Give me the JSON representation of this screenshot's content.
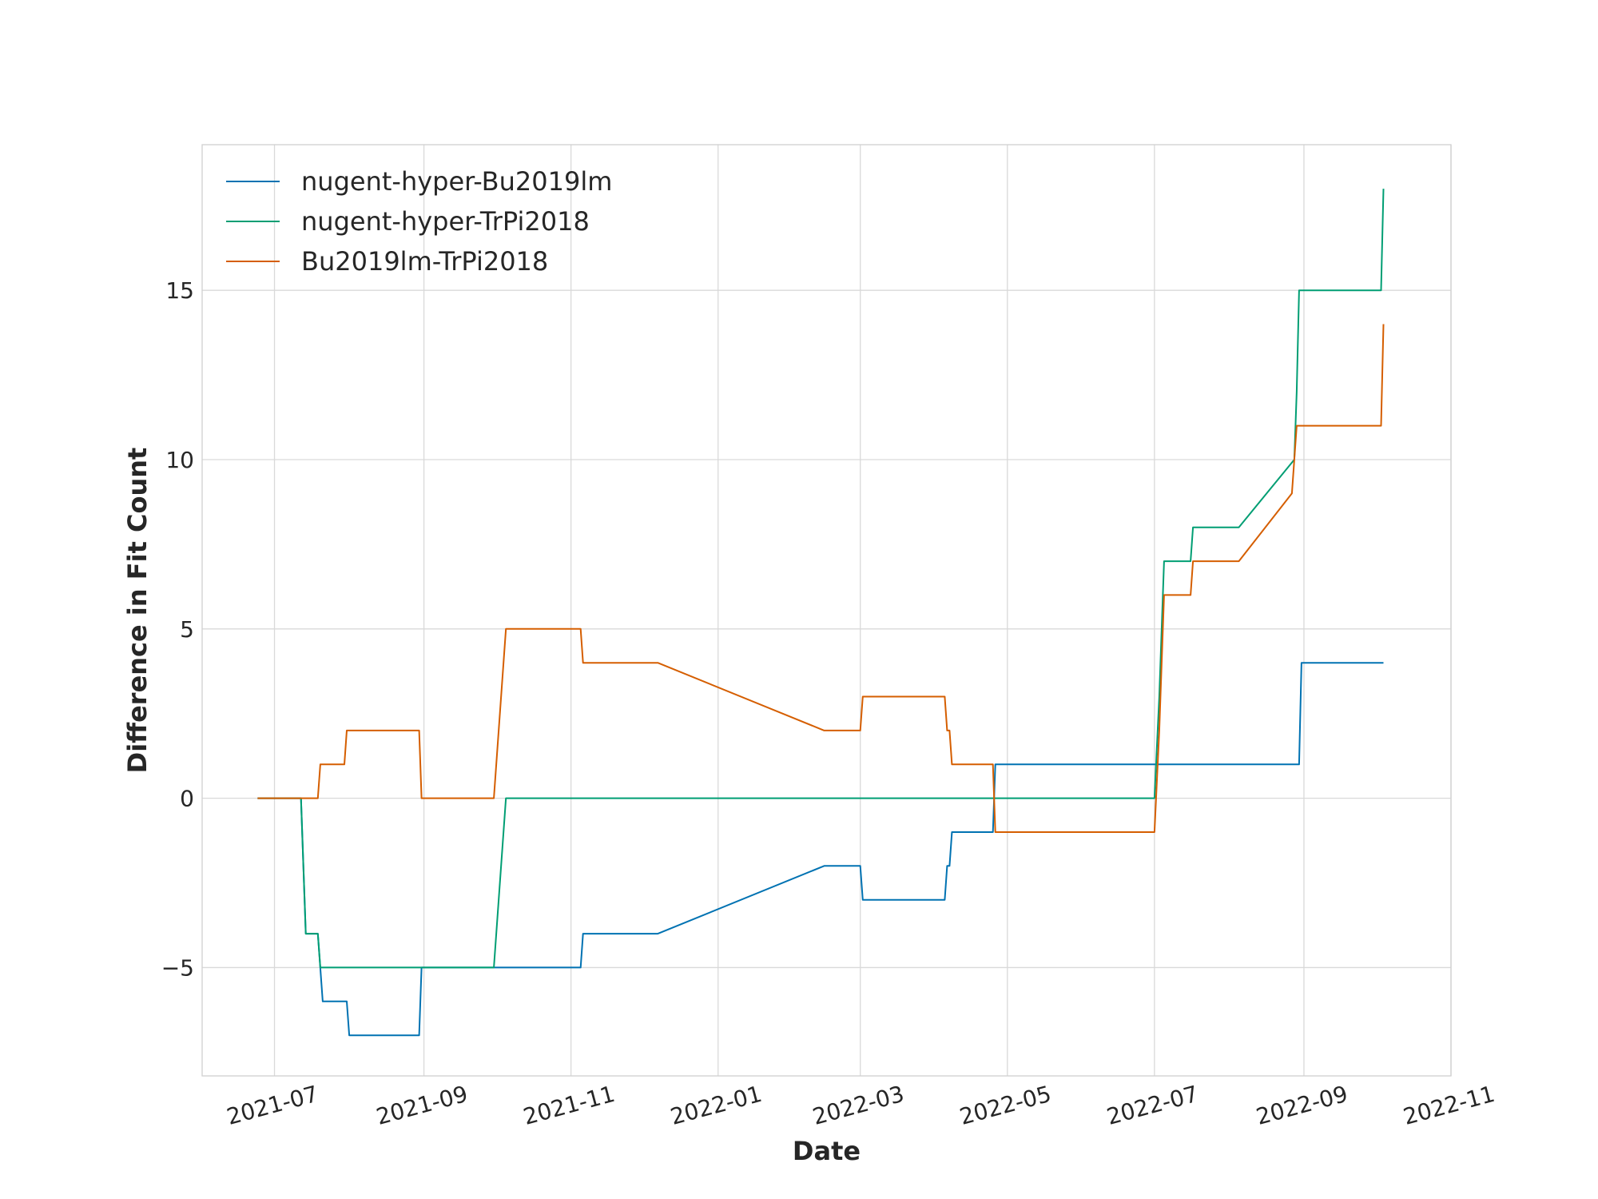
{
  "chart_data": {
    "type": "line",
    "title": "",
    "xlabel": "Date",
    "ylabel": "Difference in Fit Count",
    "x_axis_type": "date",
    "xlim": [
      "2021-06-01",
      "2022-11-01"
    ],
    "ylim": [
      -8.2,
      19.3
    ],
    "x_ticks": [
      "2021-07-01",
      "2021-09-01",
      "2021-11-01",
      "2022-01-01",
      "2022-03-01",
      "2022-05-01",
      "2022-07-01",
      "2022-09-01",
      "2022-11-01"
    ],
    "x_tick_labels": [
      "2021-07",
      "2021-09",
      "2021-11",
      "2022-01",
      "2022-03",
      "2022-05",
      "2022-07",
      "2022-09",
      "2022-11"
    ],
    "y_ticks": [
      -5,
      0,
      5,
      10,
      15
    ],
    "y_tick_labels": [
      "−5",
      "0",
      "5",
      "10",
      "15"
    ],
    "grid": true,
    "legend_position": "top-left",
    "series": [
      {
        "name": "nugent-hyper-Bu2019lm",
        "color": "#0072B2",
        "points": [
          [
            "2021-06-24",
            0
          ],
          [
            "2021-07-12",
            0
          ],
          [
            "2021-07-14",
            -4
          ],
          [
            "2021-07-19",
            -4
          ],
          [
            "2021-07-21",
            -6
          ],
          [
            "2021-07-31",
            -6
          ],
          [
            "2021-08-01",
            -7
          ],
          [
            "2021-08-30",
            -7
          ],
          [
            "2021-08-31",
            -5
          ],
          [
            "2021-11-05",
            -5
          ],
          [
            "2021-11-06",
            -4
          ],
          [
            "2021-12-07",
            -4
          ],
          [
            "2022-02-14",
            -2
          ],
          [
            "2022-03-01",
            -2
          ],
          [
            "2022-03-02",
            -3
          ],
          [
            "2022-04-05",
            -3
          ],
          [
            "2022-04-06",
            -2
          ],
          [
            "2022-04-07",
            -2
          ],
          [
            "2022-04-08",
            -1
          ],
          [
            "2022-04-25",
            -1
          ],
          [
            "2022-04-26",
            1
          ],
          [
            "2022-08-30",
            1
          ],
          [
            "2022-08-31",
            4
          ],
          [
            "2022-10-04",
            4
          ]
        ]
      },
      {
        "name": "nugent-hyper-TrPi2018",
        "color": "#009E73",
        "points": [
          [
            "2021-06-24",
            0
          ],
          [
            "2021-07-12",
            0
          ],
          [
            "2021-07-14",
            -4
          ],
          [
            "2021-07-19",
            -4
          ],
          [
            "2021-07-20",
            -5
          ],
          [
            "2021-09-30",
            -5
          ],
          [
            "2021-10-05",
            0
          ],
          [
            "2022-07-01",
            0
          ],
          [
            "2022-07-03",
            3
          ],
          [
            "2022-07-05",
            7
          ],
          [
            "2022-07-16",
            7
          ],
          [
            "2022-07-17",
            8
          ],
          [
            "2022-08-05",
            8
          ],
          [
            "2022-08-28",
            10
          ],
          [
            "2022-08-29",
            12
          ],
          [
            "2022-08-30",
            15
          ],
          [
            "2022-10-03",
            15
          ],
          [
            "2022-10-04",
            18
          ]
        ]
      },
      {
        "name": "Bu2019lm-TrPi2018",
        "color": "#D55E00",
        "points": [
          [
            "2021-06-24",
            0
          ],
          [
            "2021-07-19",
            0
          ],
          [
            "2021-07-20",
            1
          ],
          [
            "2021-07-30",
            1
          ],
          [
            "2021-07-31",
            2
          ],
          [
            "2021-08-30",
            2
          ],
          [
            "2021-08-31",
            0
          ],
          [
            "2021-09-30",
            0
          ],
          [
            "2021-10-05",
            5
          ],
          [
            "2021-11-05",
            5
          ],
          [
            "2021-11-06",
            4
          ],
          [
            "2021-12-07",
            4
          ],
          [
            "2022-02-14",
            2
          ],
          [
            "2022-03-01",
            2
          ],
          [
            "2022-03-02",
            3
          ],
          [
            "2022-04-05",
            3
          ],
          [
            "2022-04-06",
            2
          ],
          [
            "2022-04-07",
            2
          ],
          [
            "2022-04-08",
            1
          ],
          [
            "2022-04-25",
            1
          ],
          [
            "2022-04-26",
            -1
          ],
          [
            "2022-07-01",
            -1
          ],
          [
            "2022-07-03",
            2
          ],
          [
            "2022-07-05",
            6
          ],
          [
            "2022-07-16",
            6
          ],
          [
            "2022-07-17",
            7
          ],
          [
            "2022-08-05",
            7
          ],
          [
            "2022-08-27",
            9
          ],
          [
            "2022-08-29",
            11
          ],
          [
            "2022-10-03",
            11
          ],
          [
            "2022-10-04",
            14
          ]
        ]
      }
    ]
  }
}
